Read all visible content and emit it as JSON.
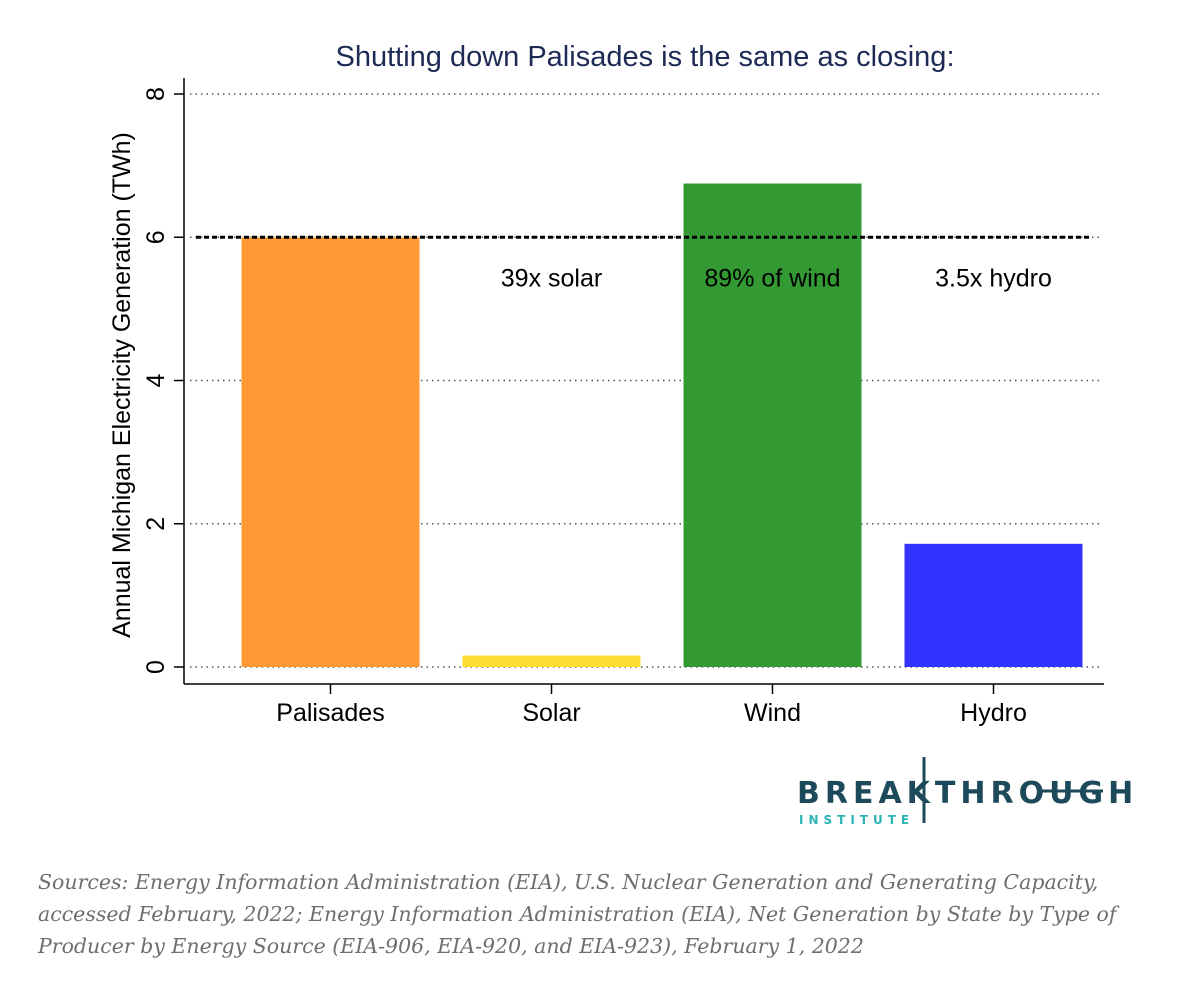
{
  "chart_data": {
    "type": "bar",
    "title": "Shutting down Palisades is the same as closing:",
    "ylabel": "Annual Michigan Electricity Generation (TWh)",
    "xlabel": "",
    "categories": [
      "Palisades",
      "Solar",
      "Wind",
      "Hydro"
    ],
    "values": [
      6.0,
      0.16,
      6.75,
      1.72
    ],
    "colors": [
      "#ff9933",
      "#ffdd33",
      "#339933",
      "#3333ff"
    ],
    "ylim": [
      0,
      8
    ],
    "yticks": [
      "0",
      "2",
      "4",
      "6",
      "8"
    ],
    "grid": true,
    "reference_line": {
      "value": 6.0,
      "style": "dashed"
    },
    "annotations": [
      {
        "text": "39x solar",
        "category": "Solar",
        "y": 5.45
      },
      {
        "text": "89% of wind",
        "category": "Wind",
        "y": 5.45
      },
      {
        "text": "3.5x hydro",
        "category": "Hydro",
        "y": 5.45
      }
    ]
  },
  "logo": {
    "main": "BREAKTHROUGH",
    "sub": "INSTITUTE"
  },
  "sources": "Sources: Energy Information Administration (EIA), U.S. Nuclear Generation and Generating Capacity, accessed February, 2022; Energy Information Administration (EIA), Net Generation by State by Type of Producer by Energy Source (EIA-906, EIA-920, and EIA-923), February 1, 2022"
}
